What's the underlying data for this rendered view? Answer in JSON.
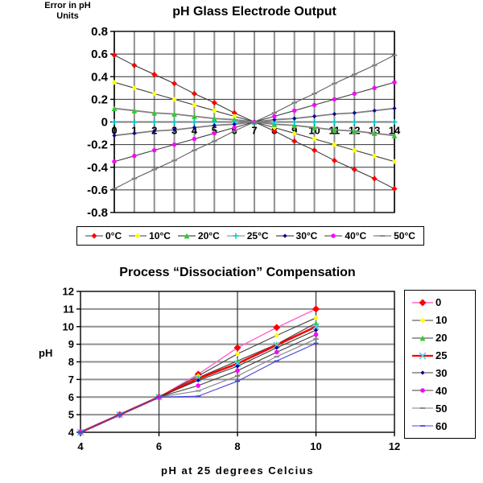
{
  "chart_data": [
    {
      "type": "line",
      "title": "pH Glass Electrode Output",
      "y_axis_label_line1": "Error in pH",
      "y_axis_label_line2": "Units",
      "xlabel": "",
      "ylabel": "Error in pH Units",
      "x": [
        0,
        1,
        2,
        3,
        4,
        5,
        6,
        7,
        8,
        9,
        10,
        11,
        12,
        13,
        14
      ],
      "x_ticks": [
        "0",
        "1",
        "2",
        "3",
        "4",
        "5",
        "6",
        "7",
        "8",
        "9",
        "10",
        "11",
        "12",
        "13",
        "14"
      ],
      "y_ticks": [
        "0.8",
        "0.6",
        "0.4",
        "0.2",
        "0",
        "-0.2",
        "-0.4",
        "-0.6",
        "-0.8"
      ],
      "xlim": [
        0,
        14
      ],
      "ylim": [
        -0.8,
        0.8
      ],
      "grid": "on",
      "legend_position": "bottom",
      "series": [
        {
          "name": "0°C",
          "marker": "diamond",
          "marker_color": "#FF0000",
          "marker_size": 3.5,
          "line_color": "#3C3C3C",
          "line_width": 1.1,
          "values": [
            0.59,
            0.5,
            0.42,
            0.34,
            0.25,
            0.17,
            0.08,
            0,
            -0.08,
            -0.17,
            -0.25,
            -0.34,
            -0.42,
            -0.5,
            -0.59
          ]
        },
        {
          "name": "10°C",
          "marker": "diamond",
          "marker_color": "#FFFF00",
          "marker_size": 3.2,
          "line_color": "#3C3C3C",
          "line_width": 1.1,
          "values": [
            0.35,
            0.3,
            0.25,
            0.2,
            0.15,
            0.1,
            0.05,
            0,
            -0.05,
            -0.1,
            -0.15,
            -0.2,
            -0.25,
            -0.3,
            -0.35
          ]
        },
        {
          "name": "20°C",
          "marker": "triangle",
          "marker_color": "#2FCC2F",
          "marker_size": 3.4,
          "line_color": "#808080",
          "line_width": 1.8,
          "values": [
            0.12,
            0.1,
            0.08,
            0.07,
            0.05,
            0.03,
            0.02,
            0,
            -0.02,
            -0.03,
            -0.05,
            -0.07,
            -0.08,
            -0.1,
            -0.12
          ]
        },
        {
          "name": "25°C",
          "marker": "plus",
          "marker_color": "#00CCCC",
          "marker_size": 3.5,
          "line_color": "#808080",
          "line_width": 1.1,
          "values": [
            0,
            0,
            0,
            0,
            0,
            0,
            0,
            0,
            0,
            0,
            0,
            0,
            0,
            0,
            0
          ]
        },
        {
          "name": "30°C",
          "marker": "diamond",
          "marker_color": "#000099",
          "marker_size": 2.6,
          "line_color": "#808080",
          "line_width": 1.8,
          "values": [
            -0.12,
            -0.1,
            -0.08,
            -0.07,
            -0.05,
            -0.03,
            -0.02,
            0,
            0.02,
            0.03,
            0.05,
            0.07,
            0.08,
            0.1,
            0.12
          ]
        },
        {
          "name": "40°C",
          "marker": "circle",
          "marker_color": "#FF00FF",
          "marker_size": 2.7,
          "line_color": "#3C3C3C",
          "line_width": 1.1,
          "values": [
            -0.35,
            -0.3,
            -0.25,
            -0.2,
            -0.15,
            -0.1,
            -0.05,
            0,
            0.05,
            0.1,
            0.15,
            0.2,
            0.25,
            0.3,
            0.35
          ]
        },
        {
          "name": "50°C",
          "marker": "dash",
          "marker_color": "#808080",
          "marker_size": 3.2,
          "line_color": "#5F5F5F",
          "line_width": 1.1,
          "values": [
            -0.59,
            -0.5,
            -0.42,
            -0.34,
            -0.25,
            -0.17,
            -0.08,
            0,
            0.08,
            0.17,
            0.25,
            0.34,
            0.42,
            0.5,
            0.59
          ]
        }
      ]
    },
    {
      "type": "line",
      "title": "Process “Dissociation” Compensation",
      "xlabel": "pH at 25 degrees Celcius",
      "ylabel": "pH",
      "x": [
        4,
        5,
        6,
        7,
        8,
        9,
        10
      ],
      "x_ticks": [
        "4",
        "6",
        "8",
        "10",
        "12"
      ],
      "y_ticks": [
        "12",
        "11",
        "10",
        "9",
        "8",
        "7",
        "6",
        "5",
        "4"
      ],
      "xlim": [
        4,
        12
      ],
      "ylim": [
        4,
        12
      ],
      "grid": "on",
      "legend_position": "right",
      "series": [
        {
          "name": "0",
          "marker": "diamond",
          "marker_color": "#FF0000",
          "marker_size": 4.5,
          "line_color": "#FF66CC",
          "line_width": 1.4,
          "values": [
            4,
            5,
            6,
            7.3,
            8.8,
            9.95,
            11.0
          ]
        },
        {
          "name": "10",
          "marker": "diamond",
          "marker_color": "#FFFF00",
          "marker_size": 3.2,
          "line_color": "#3C3C3C",
          "line_width": 1.1,
          "values": [
            4,
            5,
            6,
            7.2,
            8.45,
            9.5,
            10.5
          ]
        },
        {
          "name": "20",
          "marker": "triangle",
          "marker_color": "#2FCC2F",
          "marker_size": 3.4,
          "line_color": "#3C3C3C",
          "line_width": 1.1,
          "values": [
            4,
            5,
            6,
            7.1,
            8.05,
            9.0,
            10.2
          ]
        },
        {
          "name": "25",
          "marker": "x",
          "marker_color": "#55CCEE",
          "marker_size": 3.8,
          "line_color": "#FF0000",
          "line_width": 2.6,
          "values": [
            4,
            5,
            6,
            7.05,
            7.9,
            8.95,
            10.0
          ]
        },
        {
          "name": "30",
          "marker": "diamond",
          "marker_color": "#000099",
          "marker_size": 2.6,
          "line_color": "#3C3C3C",
          "line_width": 1.1,
          "values": [
            4,
            5,
            6,
            6.95,
            7.75,
            8.8,
            9.8
          ]
        },
        {
          "name": "40",
          "marker": "circle",
          "marker_color": "#FF00FF",
          "marker_size": 2.8,
          "line_color": "#3C3C3C",
          "line_width": 1.1,
          "values": [
            4,
            5,
            6,
            6.65,
            7.5,
            8.55,
            9.55
          ]
        },
        {
          "name": "50",
          "marker": "dash",
          "marker_color": "#808080",
          "marker_size": 3.2,
          "line_color": "#808080",
          "line_width": 1.1,
          "values": [
            4,
            5,
            6,
            6.35,
            7.2,
            8.3,
            9.3
          ]
        },
        {
          "name": "60",
          "marker": "dash",
          "marker_color": "#4444DD",
          "marker_size": 3.0,
          "line_color": "#4444DD",
          "line_width": 1.1,
          "values": [
            4,
            5,
            6,
            6.05,
            6.9,
            8.05,
            9.05
          ]
        }
      ]
    }
  ]
}
